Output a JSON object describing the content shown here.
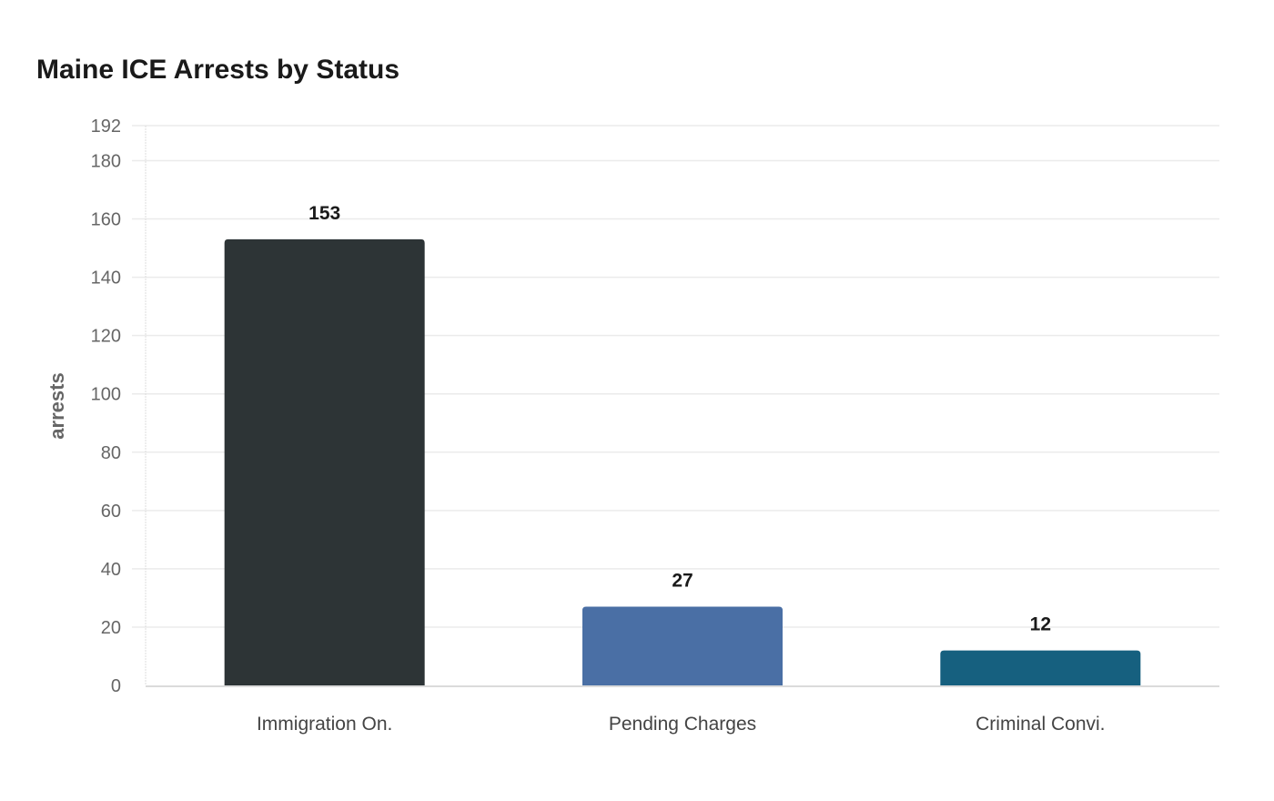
{
  "chart_data": {
    "type": "bar",
    "title": "Maine ICE Arrests by Status",
    "xlabel": "",
    "ylabel": "arrests",
    "categories": [
      "Immigration On.",
      "Pending Charges",
      "Criminal Convi."
    ],
    "values": [
      153,
      27,
      12
    ],
    "colors": [
      "#2d3436",
      "#4a6fa5",
      "#16607f"
    ],
    "ylim": [
      0,
      192
    ],
    "yticks": [
      0,
      20,
      40,
      60,
      80,
      100,
      120,
      140,
      160,
      180,
      192
    ],
    "grid": true,
    "legend": "none"
  }
}
